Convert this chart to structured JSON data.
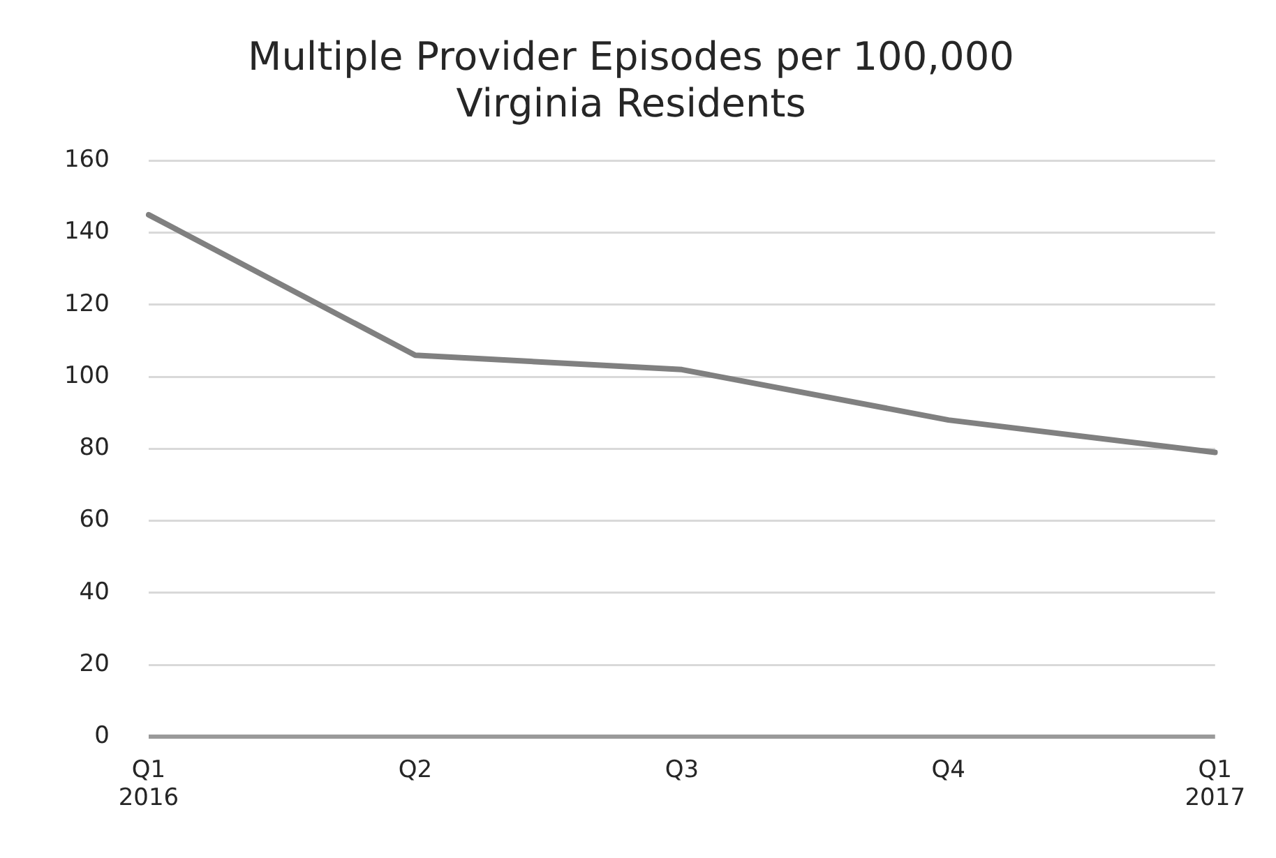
{
  "chart_data": {
    "type": "line",
    "title": "Multiple Provider Episodes per 100,000\nVirginia Residents",
    "categories": [
      "Q1\n2016",
      "Q2",
      "Q3",
      "Q4",
      "Q1\n2017"
    ],
    "series": [
      {
        "color": "#808080",
        "values": [
          145,
          106,
          102,
          88,
          79
        ]
      }
    ],
    "ylim": [
      0,
      160
    ],
    "yticks": [
      0,
      20,
      40,
      60,
      80,
      100,
      120,
      140,
      160
    ],
    "grid": "y",
    "legend": false,
    "marker": "none",
    "line_style": "solid"
  }
}
